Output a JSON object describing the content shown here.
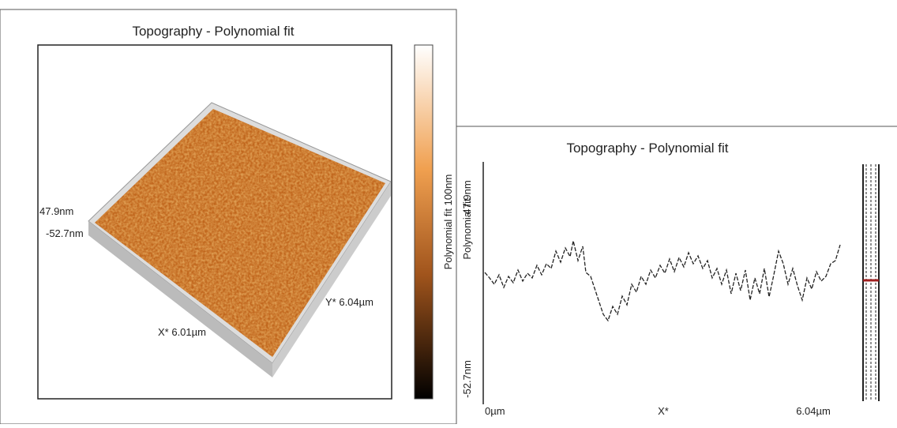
{
  "left_panel": {
    "title": "Topography - Polynomial fit",
    "z_max": "47.9nm",
    "z_min": "-52.7nm",
    "x_label": "X* 6.01µm",
    "y_label": "Y* 6.04µm",
    "colorbar_label": "Polynomial fit 100nm"
  },
  "right_panel": {
    "title": "Topography - Polynomial fit",
    "y_axis_label": "Polynomial fit",
    "y_max": "47.9nm",
    "y_min": "-52.7nm",
    "x_start": "0µm",
    "x_label": "X*",
    "x_end": "6.04µm"
  }
}
